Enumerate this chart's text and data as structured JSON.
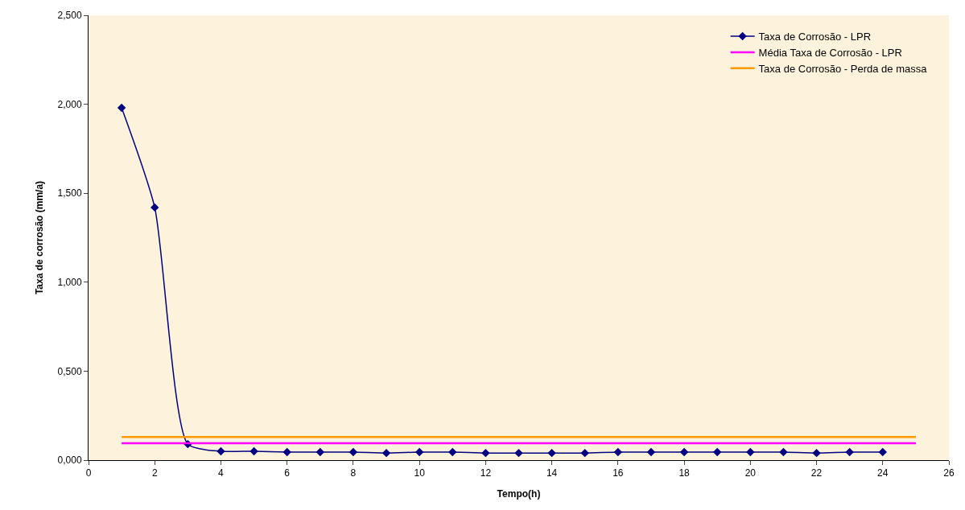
{
  "chart_data": {
    "type": "line",
    "xlabel": "Tempo(h)",
    "ylabel": "Taxa de corrosão (mm/a)",
    "xlim": [
      0,
      26
    ],
    "xticks": [
      0,
      2,
      4,
      6,
      8,
      10,
      12,
      14,
      16,
      18,
      20,
      22,
      24,
      26
    ],
    "ylim": [
      0,
      2.5
    ],
    "yticks": [
      {
        "value": 0,
        "label": "0,000"
      },
      {
        "value": 0.5,
        "label": "0,500"
      },
      {
        "value": 1,
        "label": "1,000"
      },
      {
        "value": 1.5,
        "label": "1,500"
      },
      {
        "value": 2,
        "label": "2,000"
      },
      {
        "value": 2.5,
        "label": "2,500"
      }
    ],
    "grid": false,
    "legend": "top right",
    "series": [
      {
        "name": "Taxa de Corrosão - LPR",
        "color": "#000080",
        "marker": "diamond",
        "x": [
          1,
          2,
          3,
          4,
          5,
          6,
          7,
          8,
          9,
          10,
          11,
          12,
          13,
          14,
          15,
          16,
          17,
          18,
          19,
          20,
          21,
          22,
          23,
          24
        ],
        "values": [
          1.98,
          1.42,
          0.09,
          0.05,
          0.05,
          0.045,
          0.045,
          0.045,
          0.04,
          0.045,
          0.045,
          0.04,
          0.04,
          0.04,
          0.04,
          0.045,
          0.045,
          0.045,
          0.045,
          0.045,
          0.045,
          0.04,
          0.045,
          0.045
        ]
      },
      {
        "name": "Média Taxa de Corrosão - LPR",
        "color": "#ff00ff",
        "marker": "none",
        "x": [
          1,
          25
        ],
        "values": [
          0.095,
          0.095
        ]
      },
      {
        "name": "Taxa de Corrosão - Perda de massa",
        "color": "#ff9900",
        "marker": "none",
        "x": [
          1,
          25
        ],
        "values": [
          0.13,
          0.13
        ]
      }
    ]
  }
}
